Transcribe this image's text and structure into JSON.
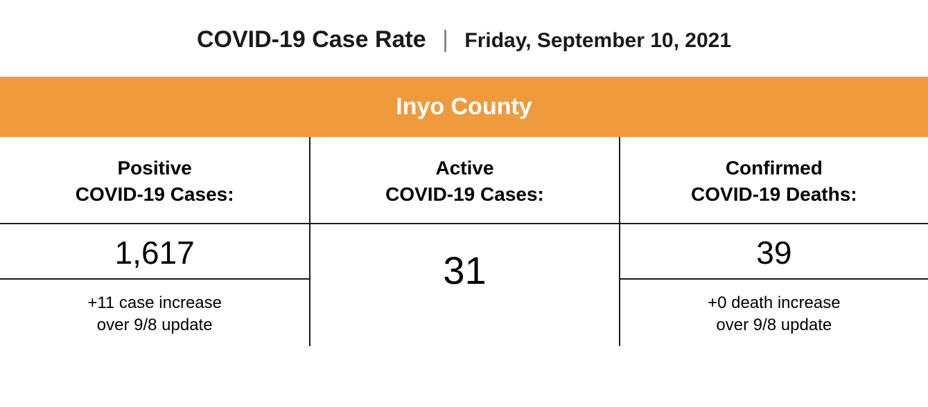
{
  "header": {
    "title": "COVID-19 Case Rate",
    "separator": "|",
    "date": "Friday, September 10, 2021"
  },
  "banner": {
    "region": "Inyo County",
    "background_color": "#f09a3e",
    "text_color": "#ffffff"
  },
  "columns": [
    {
      "label_line1": "Positive",
      "label_line2": "COVID-19 Cases:",
      "value": "1,617",
      "delta_line1": "+11 case increase",
      "delta_line2": "over 9/8 update",
      "has_delta": true
    },
    {
      "label_line1": "Active",
      "label_line2": "COVID-19 Cases:",
      "value": "31",
      "has_delta": false
    },
    {
      "label_line1": "Confirmed",
      "label_line2": "COVID-19 Deaths:",
      "value": "39",
      "delta_line1": "+0 death increase",
      "delta_line2": "over 9/8 update",
      "has_delta": true
    }
  ],
  "style": {
    "border_color": "#1a1a1a",
    "text_color": "#1a1a1a",
    "value_fontsize": 46,
    "big_value_fontsize": 56,
    "label_fontsize": 28,
    "delta_fontsize": 24
  }
}
